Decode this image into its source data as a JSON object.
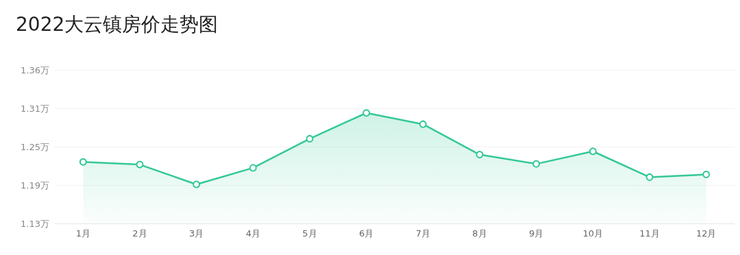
{
  "chart_data": {
    "type": "area",
    "title": "2022大云镇房价走势图",
    "categories": [
      "1月",
      "2月",
      "3月",
      "4月",
      "5月",
      "6月",
      "7月",
      "8月",
      "9月",
      "10月",
      "11月",
      "12月"
    ],
    "series": [
      {
        "color": "#33c996",
        "values": [
          1.225,
          1.221,
          1.191,
          1.216,
          1.26,
          1.299,
          1.282,
          1.236,
          1.222,
          1.241,
          1.202,
          1.206
        ]
      }
    ],
    "ylim": [
      1.132,
      1.364
    ],
    "yticks": [
      {
        "value": 1.132,
        "label": "1.13万"
      },
      {
        "value": 1.19,
        "label": "1.19万"
      },
      {
        "value": 1.248,
        "label": "1.25万"
      },
      {
        "value": 1.306,
        "label": "1.31万"
      },
      {
        "value": 1.364,
        "label": "1.36万"
      }
    ],
    "grid": "y",
    "marker": "circle"
  }
}
